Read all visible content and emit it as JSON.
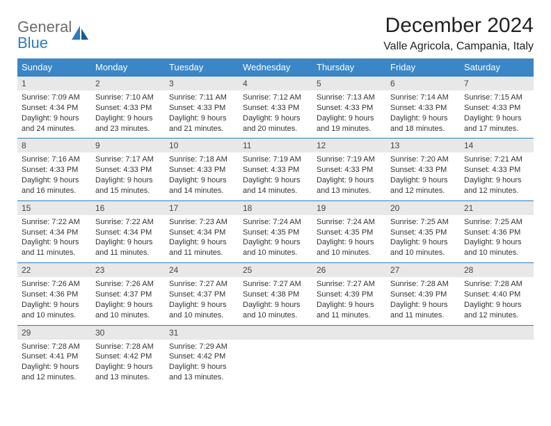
{
  "logo": {
    "word1": "General",
    "word2": "Blue"
  },
  "title": "December 2024",
  "location": "Valle Agricola, Campania, Italy",
  "colors": {
    "header_bg": "#3b86c6",
    "header_text": "#ffffff",
    "daynum_bg": "#e8e8e8",
    "border": "#2d7cc1",
    "logo_gray": "#6b6b6b",
    "logo_blue": "#2d7cc1"
  },
  "weekdays": [
    "Sunday",
    "Monday",
    "Tuesday",
    "Wednesday",
    "Thursday",
    "Friday",
    "Saturday"
  ],
  "weeks": [
    [
      {
        "num": "1",
        "sunrise": "Sunrise: 7:09 AM",
        "sunset": "Sunset: 4:34 PM",
        "daylight": "Daylight: 9 hours and 24 minutes."
      },
      {
        "num": "2",
        "sunrise": "Sunrise: 7:10 AM",
        "sunset": "Sunset: 4:33 PM",
        "daylight": "Daylight: 9 hours and 23 minutes."
      },
      {
        "num": "3",
        "sunrise": "Sunrise: 7:11 AM",
        "sunset": "Sunset: 4:33 PM",
        "daylight": "Daylight: 9 hours and 21 minutes."
      },
      {
        "num": "4",
        "sunrise": "Sunrise: 7:12 AM",
        "sunset": "Sunset: 4:33 PM",
        "daylight": "Daylight: 9 hours and 20 minutes."
      },
      {
        "num": "5",
        "sunrise": "Sunrise: 7:13 AM",
        "sunset": "Sunset: 4:33 PM",
        "daylight": "Daylight: 9 hours and 19 minutes."
      },
      {
        "num": "6",
        "sunrise": "Sunrise: 7:14 AM",
        "sunset": "Sunset: 4:33 PM",
        "daylight": "Daylight: 9 hours and 18 minutes."
      },
      {
        "num": "7",
        "sunrise": "Sunrise: 7:15 AM",
        "sunset": "Sunset: 4:33 PM",
        "daylight": "Daylight: 9 hours and 17 minutes."
      }
    ],
    [
      {
        "num": "8",
        "sunrise": "Sunrise: 7:16 AM",
        "sunset": "Sunset: 4:33 PM",
        "daylight": "Daylight: 9 hours and 16 minutes."
      },
      {
        "num": "9",
        "sunrise": "Sunrise: 7:17 AM",
        "sunset": "Sunset: 4:33 PM",
        "daylight": "Daylight: 9 hours and 15 minutes."
      },
      {
        "num": "10",
        "sunrise": "Sunrise: 7:18 AM",
        "sunset": "Sunset: 4:33 PM",
        "daylight": "Daylight: 9 hours and 14 minutes."
      },
      {
        "num": "11",
        "sunrise": "Sunrise: 7:19 AM",
        "sunset": "Sunset: 4:33 PM",
        "daylight": "Daylight: 9 hours and 14 minutes."
      },
      {
        "num": "12",
        "sunrise": "Sunrise: 7:19 AM",
        "sunset": "Sunset: 4:33 PM",
        "daylight": "Daylight: 9 hours and 13 minutes."
      },
      {
        "num": "13",
        "sunrise": "Sunrise: 7:20 AM",
        "sunset": "Sunset: 4:33 PM",
        "daylight": "Daylight: 9 hours and 12 minutes."
      },
      {
        "num": "14",
        "sunrise": "Sunrise: 7:21 AM",
        "sunset": "Sunset: 4:33 PM",
        "daylight": "Daylight: 9 hours and 12 minutes."
      }
    ],
    [
      {
        "num": "15",
        "sunrise": "Sunrise: 7:22 AM",
        "sunset": "Sunset: 4:34 PM",
        "daylight": "Daylight: 9 hours and 11 minutes."
      },
      {
        "num": "16",
        "sunrise": "Sunrise: 7:22 AM",
        "sunset": "Sunset: 4:34 PM",
        "daylight": "Daylight: 9 hours and 11 minutes."
      },
      {
        "num": "17",
        "sunrise": "Sunrise: 7:23 AM",
        "sunset": "Sunset: 4:34 PM",
        "daylight": "Daylight: 9 hours and 11 minutes."
      },
      {
        "num": "18",
        "sunrise": "Sunrise: 7:24 AM",
        "sunset": "Sunset: 4:35 PM",
        "daylight": "Daylight: 9 hours and 10 minutes."
      },
      {
        "num": "19",
        "sunrise": "Sunrise: 7:24 AM",
        "sunset": "Sunset: 4:35 PM",
        "daylight": "Daylight: 9 hours and 10 minutes."
      },
      {
        "num": "20",
        "sunrise": "Sunrise: 7:25 AM",
        "sunset": "Sunset: 4:35 PM",
        "daylight": "Daylight: 9 hours and 10 minutes."
      },
      {
        "num": "21",
        "sunrise": "Sunrise: 7:25 AM",
        "sunset": "Sunset: 4:36 PM",
        "daylight": "Daylight: 9 hours and 10 minutes."
      }
    ],
    [
      {
        "num": "22",
        "sunrise": "Sunrise: 7:26 AM",
        "sunset": "Sunset: 4:36 PM",
        "daylight": "Daylight: 9 hours and 10 minutes."
      },
      {
        "num": "23",
        "sunrise": "Sunrise: 7:26 AM",
        "sunset": "Sunset: 4:37 PM",
        "daylight": "Daylight: 9 hours and 10 minutes."
      },
      {
        "num": "24",
        "sunrise": "Sunrise: 7:27 AM",
        "sunset": "Sunset: 4:37 PM",
        "daylight": "Daylight: 9 hours and 10 minutes."
      },
      {
        "num": "25",
        "sunrise": "Sunrise: 7:27 AM",
        "sunset": "Sunset: 4:38 PM",
        "daylight": "Daylight: 9 hours and 10 minutes."
      },
      {
        "num": "26",
        "sunrise": "Sunrise: 7:27 AM",
        "sunset": "Sunset: 4:39 PM",
        "daylight": "Daylight: 9 hours and 11 minutes."
      },
      {
        "num": "27",
        "sunrise": "Sunrise: 7:28 AM",
        "sunset": "Sunset: 4:39 PM",
        "daylight": "Daylight: 9 hours and 11 minutes."
      },
      {
        "num": "28",
        "sunrise": "Sunrise: 7:28 AM",
        "sunset": "Sunset: 4:40 PM",
        "daylight": "Daylight: 9 hours and 12 minutes."
      }
    ],
    [
      {
        "num": "29",
        "sunrise": "Sunrise: 7:28 AM",
        "sunset": "Sunset: 4:41 PM",
        "daylight": "Daylight: 9 hours and 12 minutes."
      },
      {
        "num": "30",
        "sunrise": "Sunrise: 7:28 AM",
        "sunset": "Sunset: 4:42 PM",
        "daylight": "Daylight: 9 hours and 13 minutes."
      },
      {
        "num": "31",
        "sunrise": "Sunrise: 7:29 AM",
        "sunset": "Sunset: 4:42 PM",
        "daylight": "Daylight: 9 hours and 13 minutes."
      },
      null,
      null,
      null,
      null
    ]
  ]
}
